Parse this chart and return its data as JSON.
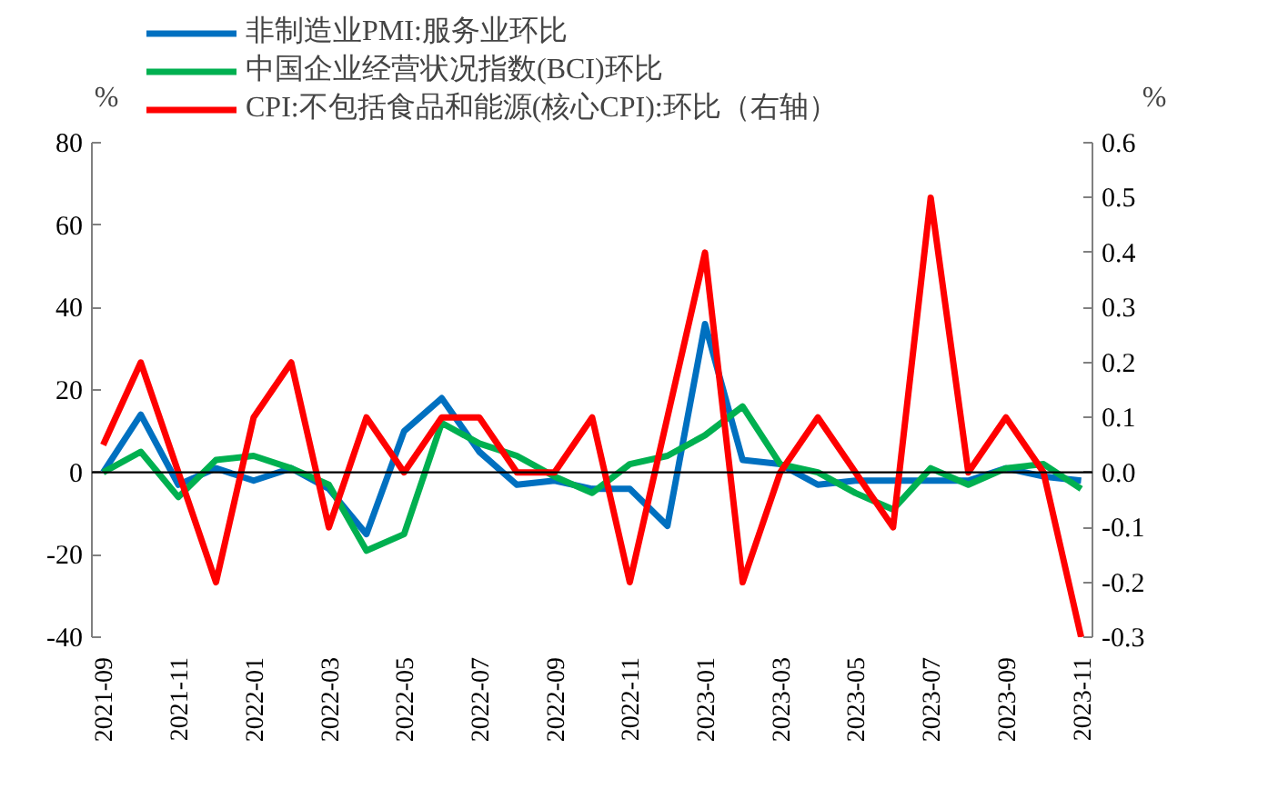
{
  "chart_data": {
    "type": "line",
    "categories": [
      "2021-09",
      null,
      "2021-11",
      null,
      "2022-01",
      null,
      "2022-03",
      null,
      "2022-05",
      null,
      "2022-07",
      null,
      "2022-09",
      null,
      "2022-11",
      null,
      "2023-01",
      null,
      "2023-03",
      null,
      "2023-05",
      null,
      "2023-07",
      null,
      "2023-09",
      null,
      "2023-11"
    ],
    "series": [
      {
        "name": "非制造业PMI:服务业环比",
        "color": "#0070c0",
        "values": [
          0,
          14,
          -3,
          1,
          -2,
          1,
          -4,
          -15,
          10,
          18,
          5,
          -3,
          -2,
          -4,
          -4,
          -13,
          36,
          3,
          2,
          -3,
          -2,
          -2,
          -2,
          -2,
          1,
          -1,
          -2
        ]
      },
      {
        "name": "中国企业经营状况指数(BCI)环比",
        "color": "#00b050",
        "values": [
          0,
          5,
          -6,
          3,
          4,
          1,
          -3,
          -19,
          -15,
          12,
          7,
          4,
          -1,
          -5,
          2,
          4,
          9,
          16,
          2,
          0,
          -5,
          -9,
          1,
          -3,
          1,
          2,
          -4
        ]
      },
      {
        "name": "CPI:不包括食品和能源(核心CPI):环比（右轴）",
        "color": "#ff0000",
        "axis": "y2",
        "values": [
          0.05,
          0.2,
          0.0,
          -0.2,
          0.1,
          0.2,
          -0.1,
          0.1,
          0.0,
          0.1,
          0.1,
          0.0,
          0.0,
          0.1,
          -0.2,
          0.1,
          0.4,
          -0.2,
          0.0,
          0.1,
          0.0,
          -0.1,
          0.5,
          0.0,
          0.1,
          0.0,
          -0.3
        ]
      }
    ],
    "ylabel": "%",
    "y2label": "%",
    "ylim": [
      -40,
      80
    ],
    "yticks": [
      -40,
      -20,
      0,
      20,
      40,
      60,
      80
    ],
    "y2lim": [
      -0.3,
      0.6
    ],
    "y2ticks": [
      -0.3,
      -0.2,
      -0.1,
      {
        "value": 0,
        "label": "0.0"
      },
      0.1,
      0.2,
      0.3,
      0.4,
      0.5,
      0.6
    ],
    "ref_lines": [
      {
        "axis": "y",
        "value": 0,
        "color": "#000000"
      }
    ],
    "grid": false,
    "legend": "top",
    "line_style": "solid"
  }
}
